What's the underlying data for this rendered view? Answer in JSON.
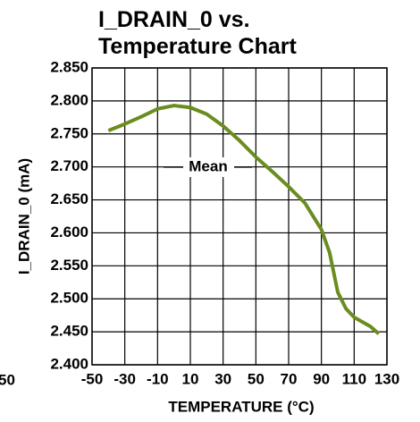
{
  "chart_data": {
    "type": "line",
    "title": [
      "I_DRAIN_0 vs.",
      "Temperature Chart"
    ],
    "x_label": "TEMPERATURE (°C)",
    "y_label": "I_DRAIN_0 (mA)",
    "stray_label": "50",
    "annotation": "Mean",
    "x": [
      -40,
      -30,
      -20,
      -10,
      0,
      10,
      20,
      30,
      40,
      50,
      60,
      70,
      80,
      90,
      95,
      100,
      105,
      110,
      120,
      125
    ],
    "series": [
      {
        "name": "Mean",
        "color": "#6b8c1e",
        "values": [
          2.755,
          2.765,
          2.776,
          2.788,
          2.793,
          2.79,
          2.78,
          2.762,
          2.74,
          2.715,
          2.693,
          2.67,
          2.645,
          2.605,
          2.57,
          2.51,
          2.485,
          2.472,
          2.458,
          2.447
        ]
      }
    ],
    "xlim": [
      -50,
      130
    ],
    "xticks": [
      -50,
      -30,
      -10,
      10,
      30,
      50,
      70,
      90,
      110,
      130
    ],
    "ylim": [
      2.4,
      2.85
    ],
    "yticks": [
      {
        "value": 2.4,
        "label": "2.400"
      },
      {
        "value": 2.45,
        "label": "2.450"
      },
      {
        "value": 2.5,
        "label": "2.500"
      },
      {
        "value": 2.55,
        "label": "2.550"
      },
      {
        "value": 2.6,
        "label": "2.600"
      },
      {
        "value": 2.65,
        "label": "2.650"
      },
      {
        "value": 2.7,
        "label": "2.700"
      },
      {
        "value": 2.75,
        "label": "2.750"
      },
      {
        "value": 2.8,
        "label": "2.800"
      },
      {
        "value": 2.85,
        "label": "2.850"
      }
    ],
    "grid": true
  }
}
